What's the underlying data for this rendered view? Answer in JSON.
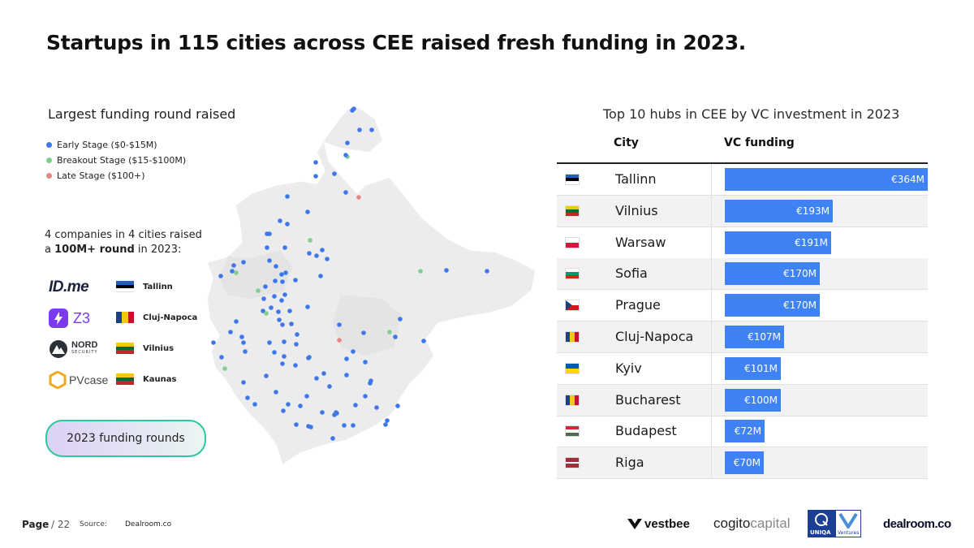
{
  "title": "Startups in 115 cities across CEE raised fresh funding in 2023.",
  "map": {
    "heading": "Largest funding round raised",
    "legend": [
      {
        "label": "Early Stage ($0-$15M)",
        "color": "#3e78e8"
      },
      {
        "label": "Breakout Stage ($15-$100M)",
        "color": "#7fcf8a"
      },
      {
        "label": "Late Stage ($100+)",
        "color": "#e88686"
      }
    ],
    "caption_line1": "4 companies in 4 cities raised",
    "caption_prefix": "a ",
    "caption_bold": "100M+ round",
    "caption_suffix": " in 2023:",
    "companies": [
      {
        "logo_text": "ID.me",
        "city": "Tallinn",
        "flag": "estonia"
      },
      {
        "logo_text": "Z3",
        "city": "Cluj-Napoca",
        "flag": "romania"
      },
      {
        "logo_text": "NORD",
        "logo_sub": "SECURITY",
        "city": "Vilnius",
        "flag": "lithuania"
      },
      {
        "logo_text": "PVcase",
        "city": "Kaunas",
        "flag": "lithuania"
      }
    ],
    "button_label": "2023 funding rounds"
  },
  "chart_data": {
    "type": "bar",
    "title": "Top 10 hubs in CEE by VC investment in 2023",
    "columns": [
      "City",
      "VC funding"
    ],
    "categories": [
      "Tallinn",
      "Vilnius",
      "Warsaw",
      "Sofia",
      "Prague",
      "Cluj-Napoca",
      "Kyiv",
      "Bucharest",
      "Budapest",
      "Riga"
    ],
    "values": [
      364,
      193,
      191,
      170,
      170,
      107,
      101,
      100,
      72,
      70
    ],
    "value_labels": [
      "€364M",
      "€193M",
      "€191M",
      "€170M",
      "€170M",
      "€107M",
      "€101M",
      "€100M",
      "€72M",
      "€70M"
    ],
    "flags": [
      "estonia",
      "lithuania",
      "poland",
      "bulgaria",
      "czech",
      "romania",
      "ukraine",
      "romania",
      "hungary",
      "latvia"
    ],
    "bar_color": "#3e82f4",
    "orientation": "horizontal"
  },
  "footer": {
    "page_label": "Page",
    "page_number": "/ 22",
    "source_label": "Source:",
    "source_value": "Dealroom.co"
  },
  "partners": {
    "vestbee": "vestbee",
    "cogito": "cogito",
    "cogito_suffix": "capital",
    "uniqa": "UNIQA",
    "ventures": "Ventures",
    "dealroom": "dealroom.co"
  }
}
